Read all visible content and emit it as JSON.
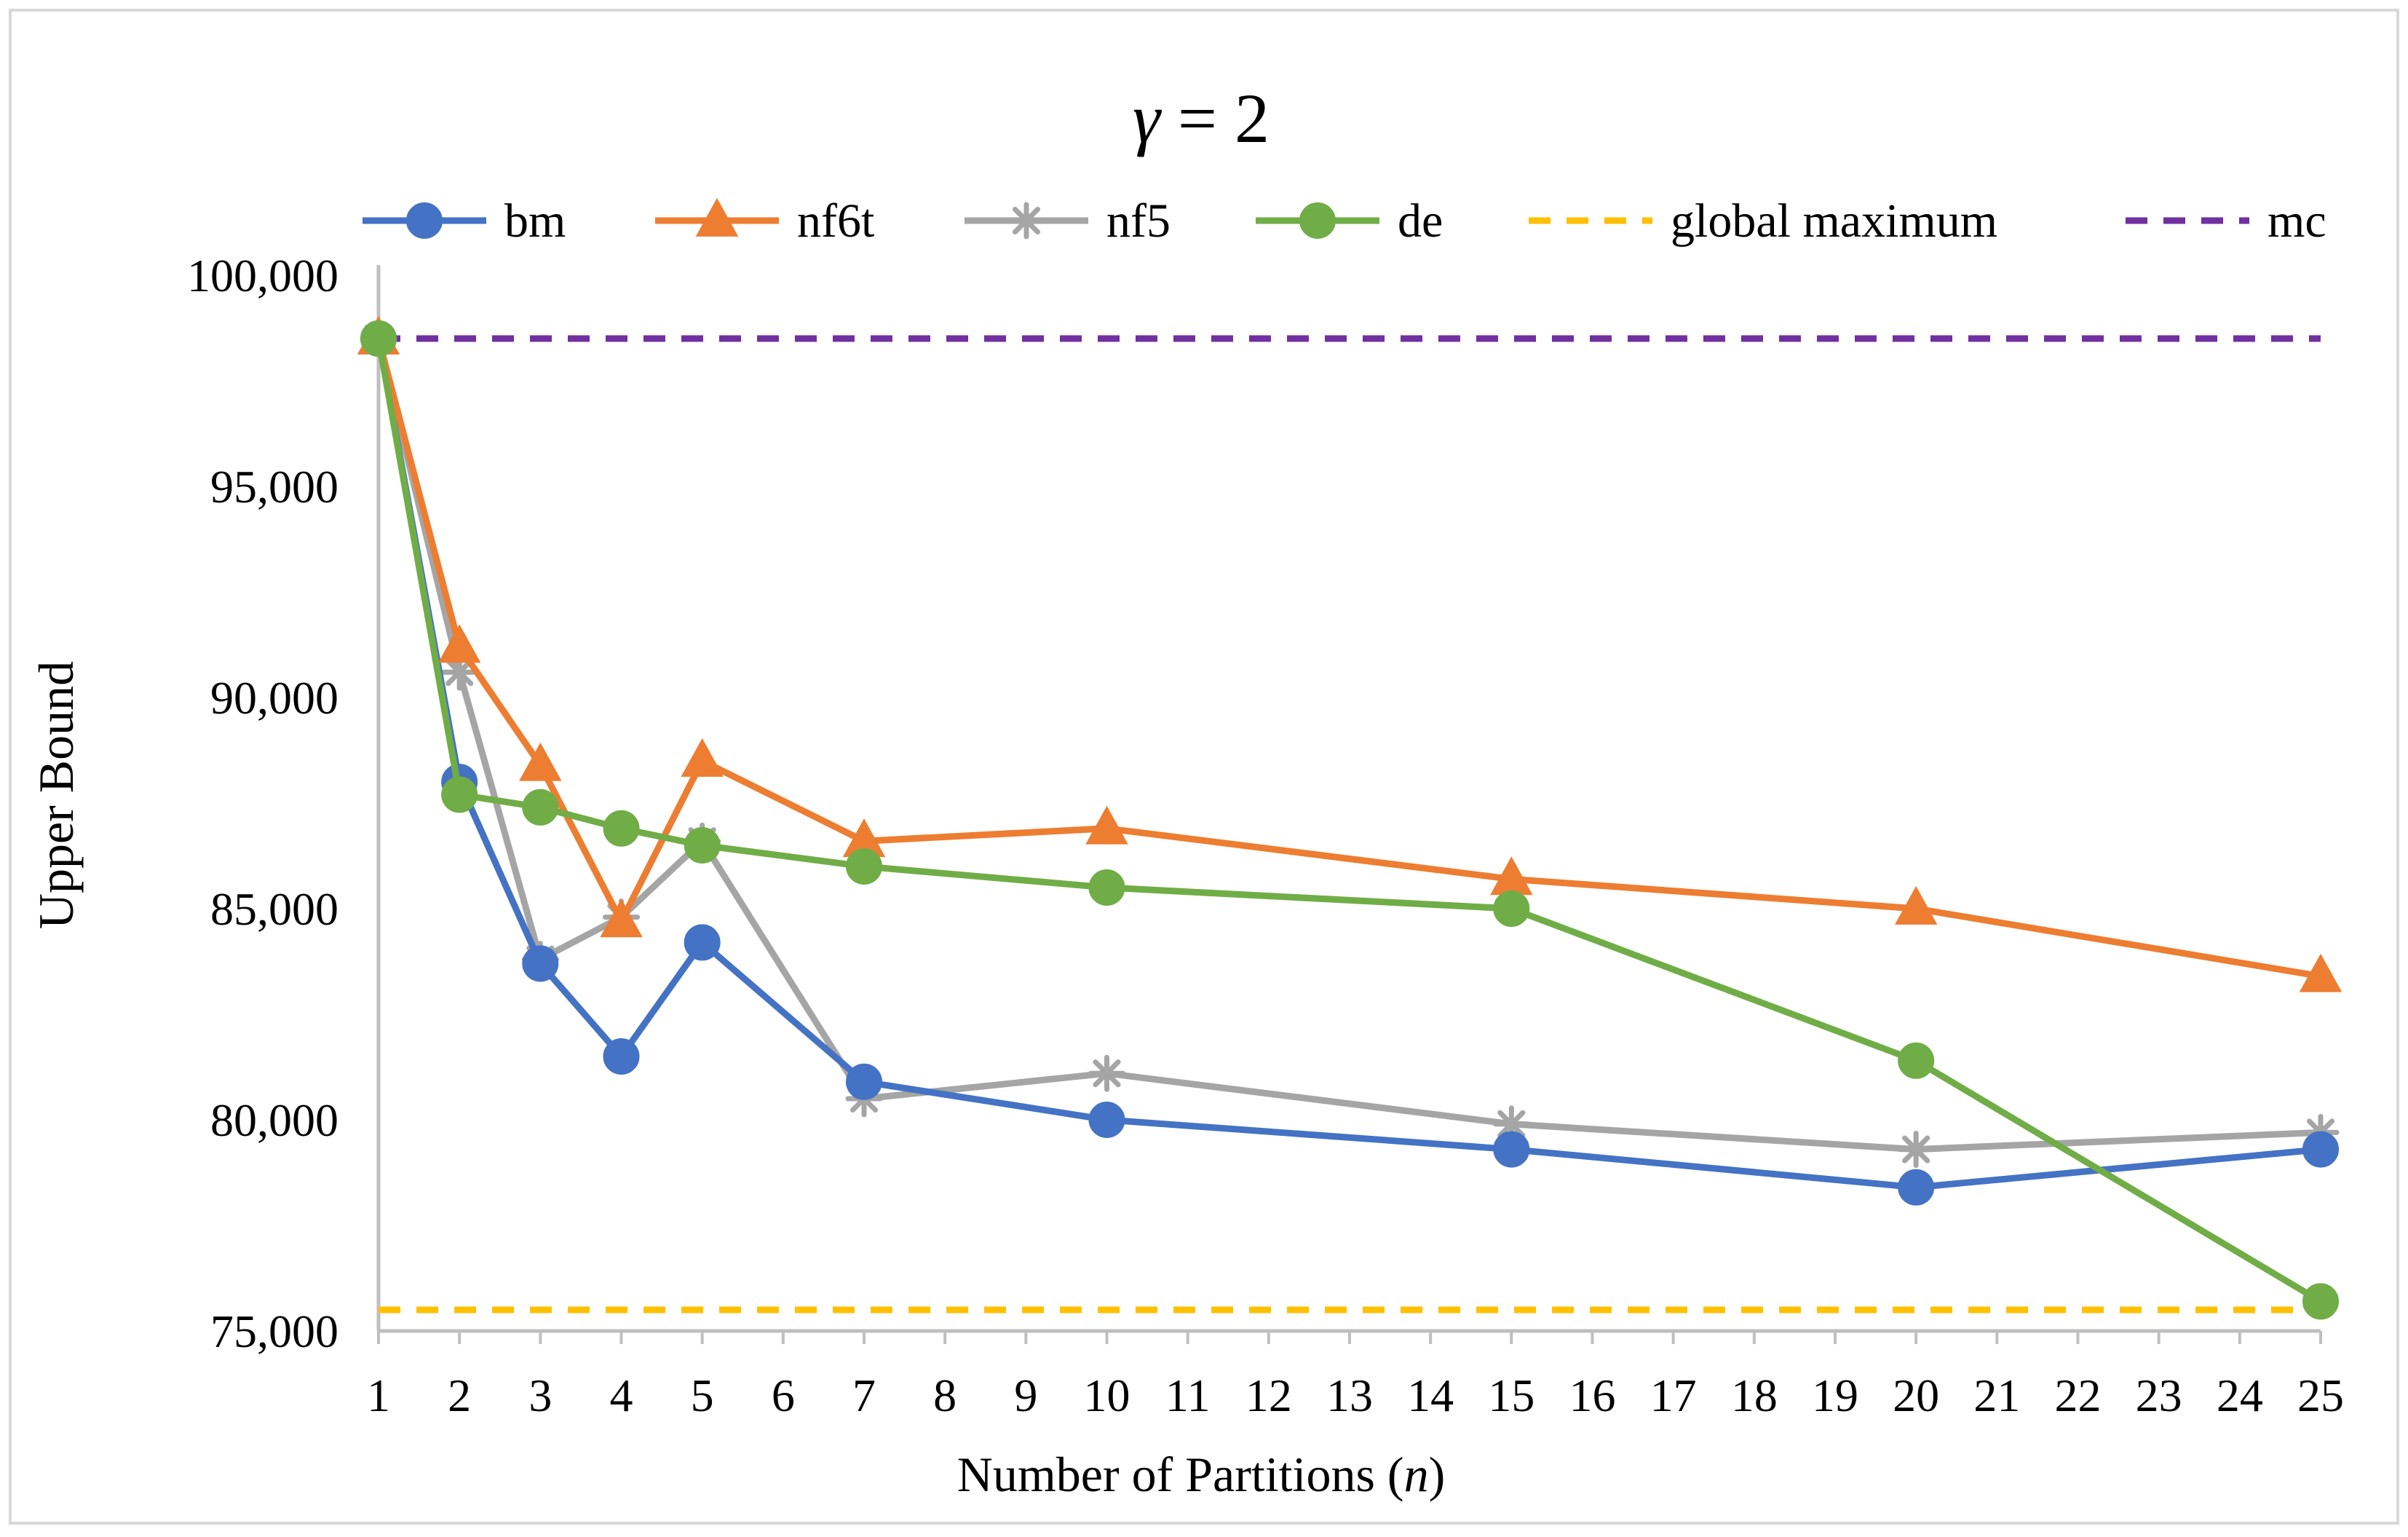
{
  "chart_data": {
    "type": "line",
    "title": {
      "symbol": "γ",
      "rest": " = 2"
    },
    "xlabel": {
      "prefix": "Number of Partitions (",
      "var": "n",
      "suffix": ")"
    },
    "ylabel": "Upper Bound",
    "x_categories": [
      "1",
      "2",
      "3",
      "4",
      "5",
      "6",
      "7",
      "8",
      "9",
      "10",
      "11",
      "12",
      "13",
      "14",
      "15",
      "16",
      "17",
      "18",
      "19",
      "20",
      "21",
      "22",
      "23",
      "24",
      "25"
    ],
    "ylim": [
      75000,
      100000
    ],
    "yticks": [
      {
        "value": 75000,
        "label": "75,000"
      },
      {
        "value": 80000,
        "label": "80,000"
      },
      {
        "value": 85000,
        "label": "85,000"
      },
      {
        "value": 90000,
        "label": "90,000"
      },
      {
        "value": 95000,
        "label": "95,000"
      },
      {
        "value": 100000,
        "label": "100,000"
      }
    ],
    "legend_position": "top",
    "series": [
      {
        "name": "bm",
        "color": "#4472C4",
        "marker": "circle",
        "dash": false,
        "x": [
          1,
          2,
          3,
          4,
          5,
          7,
          10,
          15,
          20,
          25
        ],
        "y": [
          98500,
          88000,
          83700,
          81500,
          84200,
          80900,
          80000,
          79300,
          78400,
          79300
        ]
      },
      {
        "name": "nf6t",
        "color": "#ED7D31",
        "marker": "triangle",
        "dash": false,
        "x": [
          1,
          2,
          3,
          4,
          5,
          7,
          10,
          15,
          20,
          25
        ],
        "y": [
          98500,
          91200,
          88400,
          84700,
          88500,
          86600,
          86900,
          85700,
          85000,
          83400
        ]
      },
      {
        "name": "nf5",
        "color": "#A5A5A5",
        "marker": "star",
        "dash": false,
        "x": [
          1,
          2,
          3,
          4,
          5,
          7,
          10,
          15,
          20,
          25
        ],
        "y": [
          98500,
          90600,
          83800,
          84800,
          86600,
          80500,
          81100,
          79900,
          79300,
          79700
        ]
      },
      {
        "name": "de",
        "color": "#70AD47",
        "marker": "circle",
        "dash": false,
        "x": [
          1,
          2,
          3,
          4,
          5,
          7,
          10,
          15,
          20,
          25
        ],
        "y": [
          98500,
          87700,
          87400,
          86900,
          86500,
          86000,
          85500,
          85000,
          81400,
          75700
        ]
      },
      {
        "name": "global maximum",
        "color": "#FFC000",
        "marker": "none",
        "dash": true,
        "x": [
          1,
          25
        ],
        "y": [
          75500,
          75500
        ]
      },
      {
        "name": "mc",
        "color": "#7030A0",
        "marker": "none",
        "dash": true,
        "x": [
          1,
          25
        ],
        "y": [
          98500,
          98500
        ]
      }
    ]
  }
}
